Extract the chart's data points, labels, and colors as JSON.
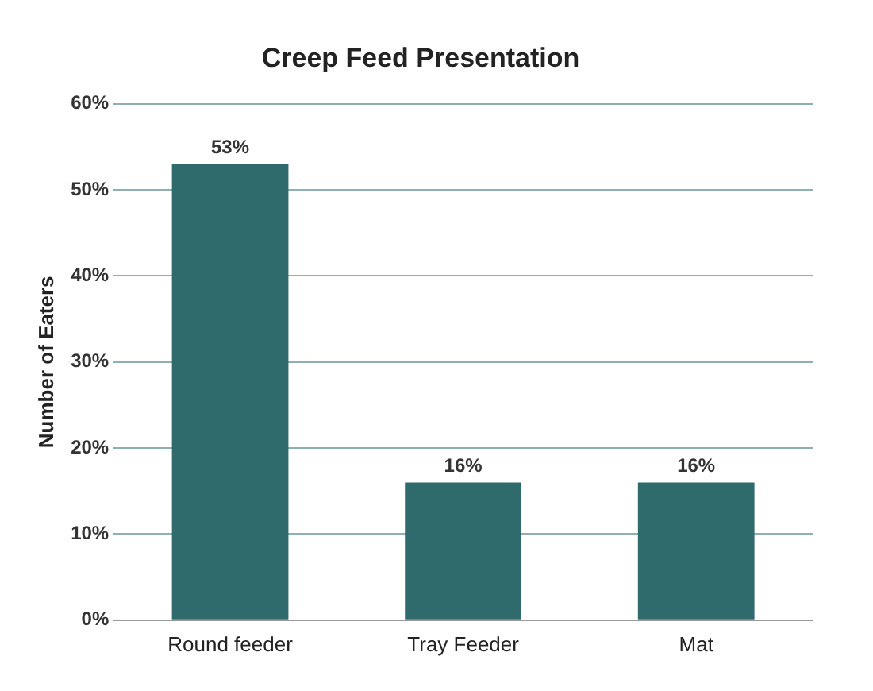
{
  "chart_data": {
    "type": "bar",
    "title": "Creep Feed Presentation",
    "ylabel": "Number of Eaters",
    "categories": [
      "Round feeder",
      "Tray Feeder",
      "Mat"
    ],
    "values": [
      53,
      16,
      16
    ],
    "value_labels": [
      "53%",
      "16%",
      "16%"
    ],
    "color": "#2f6b6c",
    "ylim": [
      0,
      60
    ],
    "yticks": [
      {
        "value": 0,
        "label": "0%"
      },
      {
        "value": 10,
        "label": "10%"
      },
      {
        "value": 20,
        "label": "20%"
      },
      {
        "value": 30,
        "label": "30%"
      },
      {
        "value": 40,
        "label": "40%"
      },
      {
        "value": 50,
        "label": "50%"
      },
      {
        "value": 60,
        "label": "60%"
      }
    ],
    "grid": "y"
  }
}
